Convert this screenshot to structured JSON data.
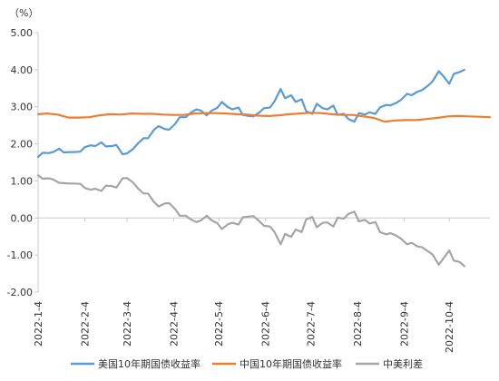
{
  "chart_data": {
    "type": "line",
    "unit": "（%）",
    "ylim": [
      -2.0,
      5.0
    ],
    "y_ticks": [
      "5.00",
      "4.00",
      "3.00",
      "2.00",
      "1.00",
      "0.00",
      "-1.00",
      "-2.00"
    ],
    "y_tick_values": [
      5,
      4,
      3,
      2,
      1,
      0,
      -1,
      -2
    ],
    "grid": false,
    "legend_position": "bottom",
    "x_tick_labels": [
      "2022-1-4",
      "2022-2-4",
      "2022-3-4",
      "2022-4-4",
      "2022-5-4",
      "2022-6-4",
      "2022-7-4",
      "2022-8-4",
      "2022-9-4",
      "2022-10-4"
    ],
    "x_range": [
      "2022-01-04",
      "2022-10-31"
    ],
    "series": [
      {
        "name": "美国10年期国债收益率",
        "color": "#5b9bd5",
        "points": [
          [
            "2022-01-04",
            1.65
          ],
          [
            "2022-01-07",
            1.76
          ],
          [
            "2022-01-11",
            1.75
          ],
          [
            "2022-01-14",
            1.78
          ],
          [
            "2022-01-18",
            1.87
          ],
          [
            "2022-01-21",
            1.77
          ],
          [
            "2022-01-25",
            1.78
          ],
          [
            "2022-01-28",
            1.78
          ],
          [
            "2022-02-01",
            1.79
          ],
          [
            "2022-02-04",
            1.91
          ],
          [
            "2022-02-08",
            1.96
          ],
          [
            "2022-02-11",
            1.94
          ],
          [
            "2022-02-15",
            2.04
          ],
          [
            "2022-02-18",
            1.93
          ],
          [
            "2022-02-22",
            1.94
          ],
          [
            "2022-02-25",
            1.97
          ],
          [
            "2022-03-01",
            1.72
          ],
          [
            "2022-03-04",
            1.74
          ],
          [
            "2022-03-08",
            1.86
          ],
          [
            "2022-03-11",
            2.0
          ],
          [
            "2022-03-15",
            2.15
          ],
          [
            "2022-03-18",
            2.15
          ],
          [
            "2022-03-22",
            2.38
          ],
          [
            "2022-03-25",
            2.48
          ],
          [
            "2022-03-29",
            2.4
          ],
          [
            "2022-04-01",
            2.38
          ],
          [
            "2022-04-05",
            2.54
          ],
          [
            "2022-04-08",
            2.72
          ],
          [
            "2022-04-12",
            2.72
          ],
          [
            "2022-04-15",
            2.83
          ],
          [
            "2022-04-19",
            2.93
          ],
          [
            "2022-04-22",
            2.9
          ],
          [
            "2022-04-26",
            2.77
          ],
          [
            "2022-04-29",
            2.89
          ],
          [
            "2022-05-03",
            2.97
          ],
          [
            "2022-05-06",
            3.13
          ],
          [
            "2022-05-10",
            2.99
          ],
          [
            "2022-05-13",
            2.93
          ],
          [
            "2022-05-17",
            2.98
          ],
          [
            "2022-05-20",
            2.78
          ],
          [
            "2022-05-24",
            2.75
          ],
          [
            "2022-05-27",
            2.74
          ],
          [
            "2022-05-31",
            2.85
          ],
          [
            "2022-06-03",
            2.96
          ],
          [
            "2022-06-07",
            2.98
          ],
          [
            "2022-06-10",
            3.15
          ],
          [
            "2022-06-14",
            3.48
          ],
          [
            "2022-06-17",
            3.23
          ],
          [
            "2022-06-21",
            3.31
          ],
          [
            "2022-06-24",
            3.13
          ],
          [
            "2022-06-28",
            3.2
          ],
          [
            "2022-07-01",
            2.88
          ],
          [
            "2022-07-05",
            2.81
          ],
          [
            "2022-07-08",
            3.08
          ],
          [
            "2022-07-12",
            2.96
          ],
          [
            "2022-07-15",
            2.93
          ],
          [
            "2022-07-19",
            3.03
          ],
          [
            "2022-07-22",
            2.78
          ],
          [
            "2022-07-26",
            2.81
          ],
          [
            "2022-07-29",
            2.67
          ],
          [
            "2022-08-02",
            2.6
          ],
          [
            "2022-08-05",
            2.83
          ],
          [
            "2022-08-09",
            2.79
          ],
          [
            "2022-08-12",
            2.85
          ],
          [
            "2022-08-16",
            2.81
          ],
          [
            "2022-08-19",
            2.98
          ],
          [
            "2022-08-23",
            3.05
          ],
          [
            "2022-08-26",
            3.04
          ],
          [
            "2022-08-30",
            3.11
          ],
          [
            "2022-09-02",
            3.19
          ],
          [
            "2022-09-06",
            3.35
          ],
          [
            "2022-09-09",
            3.31
          ],
          [
            "2022-09-13",
            3.41
          ],
          [
            "2022-09-16",
            3.45
          ],
          [
            "2022-09-20",
            3.57
          ],
          [
            "2022-09-23",
            3.69
          ],
          [
            "2022-09-27",
            3.96
          ],
          [
            "2022-09-30",
            3.83
          ],
          [
            "2022-10-04",
            3.62
          ],
          [
            "2022-10-07",
            3.89
          ],
          [
            "2022-10-11",
            3.94
          ],
          [
            "2022-10-14",
            4.0
          ]
        ]
      },
      {
        "name": "中国10年期国债收益率",
        "color": "#ed7d31",
        "points": [
          [
            "2022-01-04",
            2.8
          ],
          [
            "2022-01-10",
            2.82
          ],
          [
            "2022-01-17",
            2.79
          ],
          [
            "2022-01-24",
            2.71
          ],
          [
            "2022-01-31",
            2.71
          ],
          [
            "2022-02-07",
            2.72
          ],
          [
            "2022-02-14",
            2.77
          ],
          [
            "2022-02-21",
            2.8
          ],
          [
            "2022-02-28",
            2.79
          ],
          [
            "2022-03-07",
            2.82
          ],
          [
            "2022-03-14",
            2.81
          ],
          [
            "2022-03-21",
            2.81
          ],
          [
            "2022-03-28",
            2.79
          ],
          [
            "2022-04-04",
            2.78
          ],
          [
            "2022-04-11",
            2.78
          ],
          [
            "2022-04-18",
            2.82
          ],
          [
            "2022-04-25",
            2.83
          ],
          [
            "2022-05-02",
            2.83
          ],
          [
            "2022-05-09",
            2.82
          ],
          [
            "2022-05-16",
            2.8
          ],
          [
            "2022-05-23",
            2.79
          ],
          [
            "2022-05-30",
            2.76
          ],
          [
            "2022-06-06",
            2.75
          ],
          [
            "2022-06-13",
            2.77
          ],
          [
            "2022-06-20",
            2.8
          ],
          [
            "2022-06-27",
            2.82
          ],
          [
            "2022-07-04",
            2.84
          ],
          [
            "2022-07-11",
            2.83
          ],
          [
            "2022-07-18",
            2.8
          ],
          [
            "2022-07-25",
            2.78
          ],
          [
            "2022-08-01",
            2.78
          ],
          [
            "2022-08-08",
            2.74
          ],
          [
            "2022-08-15",
            2.7
          ],
          [
            "2022-08-22",
            2.6
          ],
          [
            "2022-08-29",
            2.63
          ],
          [
            "2022-09-05",
            2.64
          ],
          [
            "2022-09-12",
            2.64
          ],
          [
            "2022-09-19",
            2.67
          ],
          [
            "2022-09-26",
            2.7
          ],
          [
            "2022-10-03",
            2.74
          ],
          [
            "2022-10-10",
            2.75
          ],
          [
            "2022-10-17",
            2.74
          ],
          [
            "2022-10-24",
            2.73
          ],
          [
            "2022-10-31",
            2.72
          ]
        ]
      },
      {
        "name": "中美利差",
        "color": "#a5a5a5",
        "points": [
          [
            "2022-01-04",
            1.15
          ],
          [
            "2022-01-07",
            1.06
          ],
          [
            "2022-01-11",
            1.07
          ],
          [
            "2022-01-14",
            1.04
          ],
          [
            "2022-01-18",
            0.95
          ],
          [
            "2022-01-21",
            0.94
          ],
          [
            "2022-01-25",
            0.93
          ],
          [
            "2022-01-28",
            0.93
          ],
          [
            "2022-02-01",
            0.92
          ],
          [
            "2022-02-04",
            0.81
          ],
          [
            "2022-02-08",
            0.76
          ],
          [
            "2022-02-11",
            0.79
          ],
          [
            "2022-02-15",
            0.73
          ],
          [
            "2022-02-18",
            0.87
          ],
          [
            "2022-02-22",
            0.86
          ],
          [
            "2022-02-25",
            0.82
          ],
          [
            "2022-03-01",
            1.07
          ],
          [
            "2022-03-04",
            1.08
          ],
          [
            "2022-03-08",
            0.96
          ],
          [
            "2022-03-11",
            0.81
          ],
          [
            "2022-03-15",
            0.66
          ],
          [
            "2022-03-18",
            0.66
          ],
          [
            "2022-03-22",
            0.43
          ],
          [
            "2022-03-25",
            0.31
          ],
          [
            "2022-03-29",
            0.39
          ],
          [
            "2022-04-01",
            0.4
          ],
          [
            "2022-04-05",
            0.24
          ],
          [
            "2022-04-08",
            0.06
          ],
          [
            "2022-04-12",
            0.06
          ],
          [
            "2022-04-15",
            -0.03
          ],
          [
            "2022-04-19",
            -0.11
          ],
          [
            "2022-04-22",
            -0.07
          ],
          [
            "2022-04-26",
            0.06
          ],
          [
            "2022-04-29",
            -0.06
          ],
          [
            "2022-05-03",
            -0.14
          ],
          [
            "2022-05-06",
            -0.3
          ],
          [
            "2022-05-10",
            -0.17
          ],
          [
            "2022-05-13",
            -0.13
          ],
          [
            "2022-05-17",
            -0.18
          ],
          [
            "2022-05-20",
            0.02
          ],
          [
            "2022-05-24",
            0.04
          ],
          [
            "2022-05-27",
            0.05
          ],
          [
            "2022-05-31",
            -0.09
          ],
          [
            "2022-06-03",
            -0.21
          ],
          [
            "2022-06-07",
            -0.23
          ],
          [
            "2022-06-10",
            -0.38
          ],
          [
            "2022-06-14",
            -0.71
          ],
          [
            "2022-06-17",
            -0.43
          ],
          [
            "2022-06-21",
            -0.51
          ],
          [
            "2022-06-24",
            -0.31
          ],
          [
            "2022-06-28",
            -0.38
          ],
          [
            "2022-07-01",
            -0.04
          ],
          [
            "2022-07-05",
            0.03
          ],
          [
            "2022-07-08",
            -0.25
          ],
          [
            "2022-07-12",
            -0.13
          ],
          [
            "2022-07-15",
            -0.12
          ],
          [
            "2022-07-19",
            -0.23
          ],
          [
            "2022-07-22",
            0.01
          ],
          [
            "2022-07-26",
            -0.02
          ],
          [
            "2022-07-29",
            0.11
          ],
          [
            "2022-08-02",
            0.17
          ],
          [
            "2022-08-05",
            -0.09
          ],
          [
            "2022-08-09",
            -0.05
          ],
          [
            "2022-08-12",
            -0.15
          ],
          [
            "2022-08-16",
            -0.11
          ],
          [
            "2022-08-19",
            -0.38
          ],
          [
            "2022-08-23",
            -0.44
          ],
          [
            "2022-08-26",
            -0.41
          ],
          [
            "2022-08-30",
            -0.48
          ],
          [
            "2022-09-02",
            -0.56
          ],
          [
            "2022-09-06",
            -0.71
          ],
          [
            "2022-09-09",
            -0.67
          ],
          [
            "2022-09-13",
            -0.77
          ],
          [
            "2022-09-16",
            -0.79
          ],
          [
            "2022-09-20",
            -0.9
          ],
          [
            "2022-09-23",
            -0.99
          ],
          [
            "2022-09-27",
            -1.26
          ],
          [
            "2022-09-30",
            -1.1
          ],
          [
            "2022-10-04",
            -0.88
          ],
          [
            "2022-10-07",
            -1.15
          ],
          [
            "2022-10-11",
            -1.19
          ],
          [
            "2022-10-14",
            -1.3
          ]
        ]
      }
    ]
  }
}
